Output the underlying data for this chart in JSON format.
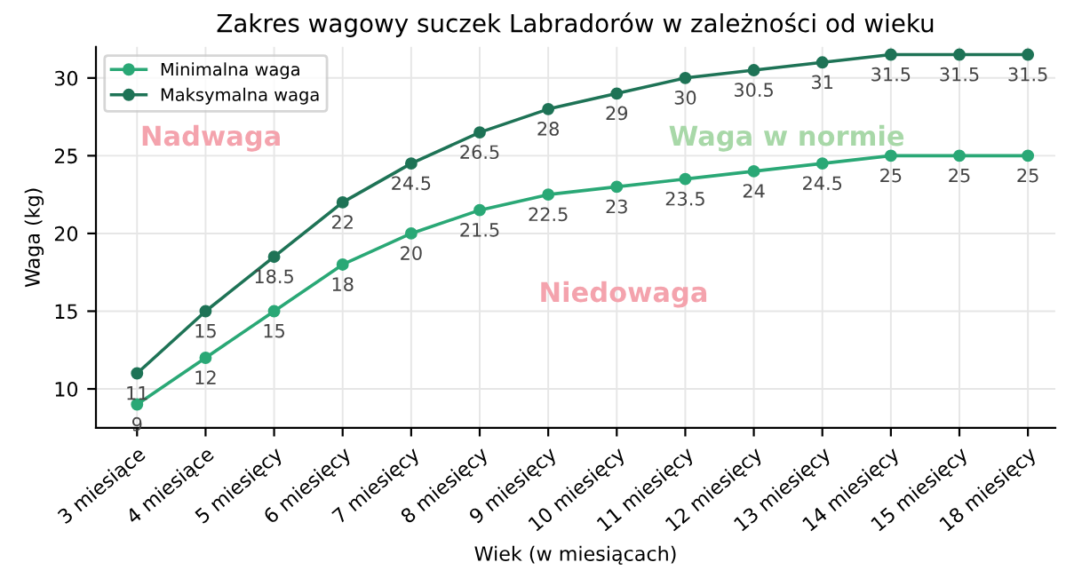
{
  "chart_data": {
    "type": "line",
    "title": "Zakres wagowy suczek Labradorów w zależności od wieku",
    "xlabel": "Wiek (w miesiącach)",
    "ylabel": "Waga (kg)",
    "categories": [
      "3 miesiące",
      "4 miesiące",
      "5 miesięcy",
      "6 miesięcy",
      "7 miesięcy",
      "8 miesięcy",
      "9 miesięcy",
      "10 miesięcy",
      "11 miesięcy",
      "12 miesięcy",
      "13 miesięcy",
      "14 miesięcy",
      "15 miesięcy",
      "18 miesięcy"
    ],
    "series": [
      {
        "name": "Minimalna waga",
        "color": "#2aa876",
        "values": [
          9,
          12,
          15,
          18,
          20,
          21.5,
          22.5,
          23,
          23.5,
          24,
          24.5,
          25,
          25,
          25
        ]
      },
      {
        "name": "Maksymalna waga",
        "color": "#1e7356",
        "values": [
          11,
          15,
          18.5,
          22,
          24.5,
          26.5,
          28,
          29,
          30,
          30.5,
          31,
          31.5,
          31.5,
          31.5
        ]
      }
    ],
    "annotations": [
      "Nadwaga",
      "Waga w normie",
      "Niedowaga"
    ],
    "ylim": [
      7.5,
      32
    ],
    "yticks": [
      10,
      15,
      20,
      25,
      30
    ],
    "grid": true,
    "legend": "top left",
    "marker": "circle",
    "line_style": "solid",
    "data_labels": true
  }
}
